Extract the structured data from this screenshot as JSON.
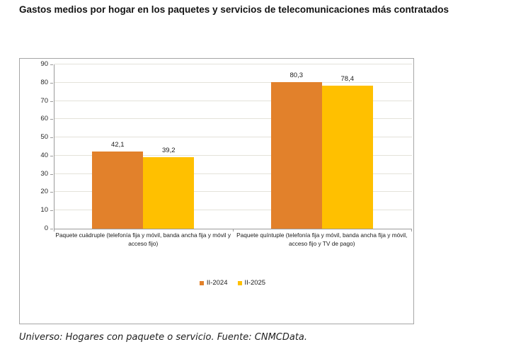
{
  "title": "Gastos medios por hogar en los paquetes y servicios de telecomunicaciones más contratados",
  "footer": "Universo: Hogares con paquete o servicio. Fuente: CNMCData.",
  "chart_data": {
    "type": "bar",
    "title": "Gastos medios por hogar en los paquetes y servicios de telecomunicaciones más contratados",
    "categories": [
      "Paquete cuádruple (telefonía fija y móvil, banda ancha fija y móvil y acceso fijo)",
      "Paquete quíntuple (telefonía fija y móvil, banda ancha fija y móvil, acceso fijo y TV de pago)"
    ],
    "series": [
      {
        "name": "II-2024",
        "color": "#E2812B",
        "values": [
          42.1,
          80.3
        ],
        "labels": [
          "42,1",
          "80,3"
        ]
      },
      {
        "name": "II-2025",
        "color": "#FFC000",
        "values": [
          39.2,
          78.4
        ],
        "labels": [
          "39,2",
          "78,4"
        ]
      }
    ],
    "xlabel": "",
    "ylabel": "",
    "ylim": [
      0,
      90
    ],
    "ytick_step": 10,
    "yticks": [
      "0",
      "10",
      "20",
      "30",
      "40",
      "50",
      "60",
      "70",
      "80",
      "90"
    ],
    "grid": true,
    "legend_position": "bottom"
  }
}
